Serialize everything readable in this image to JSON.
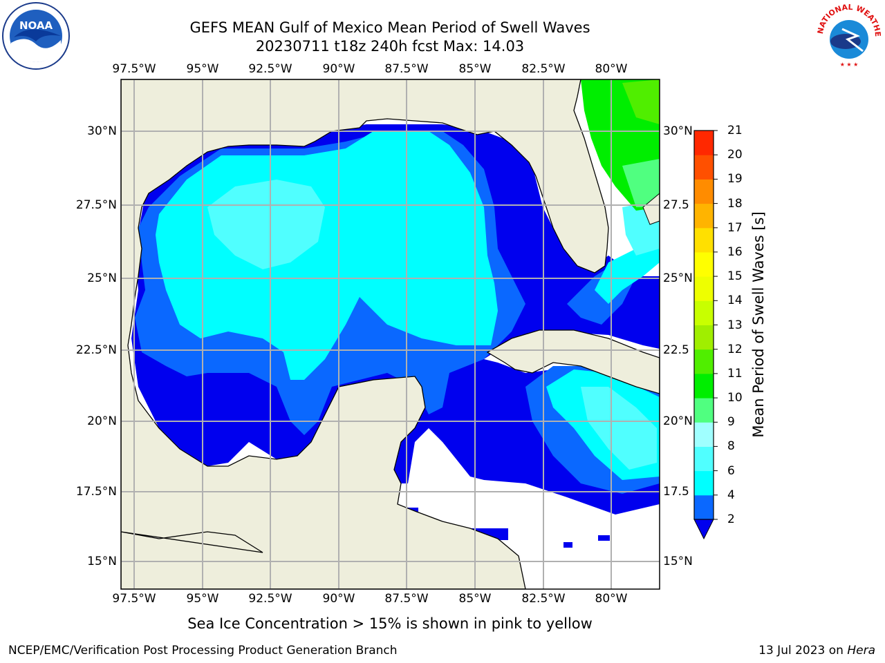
{
  "title": {
    "line1": "GEFS MEAN Gulf of Mexico Mean Period of Swell Waves",
    "line2": "20230711 t18z 240h fcst   Max: 14.03"
  },
  "map": {
    "lon_ticks_top": [
      "97.5°W",
      "95°W",
      "92.5°W",
      "90°W",
      "87.5°W",
      "85°W",
      "82.5°W",
      "80°W"
    ],
    "lon_ticks_bottom": [
      "97.5°W",
      "95°W",
      "92.5°W",
      "90°W",
      "87.5°W",
      "85°W",
      "82.5°W",
      "80°W"
    ],
    "lat_ticks_left": [
      "30°N",
      "27.5°N",
      "25°N",
      "22.5°N",
      "20°N",
      "17.5°N",
      "15°N"
    ],
    "lat_ticks_right": [
      "30°N",
      "27.5",
      "25°N",
      "22.5",
      "20°N",
      "17.5",
      "15°N"
    ],
    "land_color": "#eeeedc",
    "grid_color": "#b0b0b0"
  },
  "colorbar": {
    "label": "Mean Period of Swell Waves [s]",
    "ticks": [
      "2",
      "4",
      "6",
      "8",
      "9",
      "10",
      "11",
      "12",
      "13",
      "14",
      "15",
      "16",
      "17",
      "18",
      "19",
      "20",
      "21"
    ],
    "colors": [
      "#0a68ff",
      "#00ffff",
      "#50ffff",
      "#a0ffff",
      "#50ff80",
      "#00ee00",
      "#50ee00",
      "#a0ee00",
      "#c8ff00",
      "#eeff00",
      "#ffff00",
      "#ffe000",
      "#ffb400",
      "#ff8c00",
      "#ff5000",
      "#ff2800",
      "#ff0000"
    ],
    "under_color": "#0000ee"
  },
  "note": "Sea Ice Concentration > 15% is shown in pink to yellow",
  "footer": {
    "left": "NCEP/EMC/Verification Post Processing Product Generation Branch",
    "date": "13 Jul 2023 on ",
    "machine": "Hera"
  },
  "logos": {
    "noaa_text": "NOAA",
    "nws_text": "NATIONAL WEATHER SERVICE"
  }
}
